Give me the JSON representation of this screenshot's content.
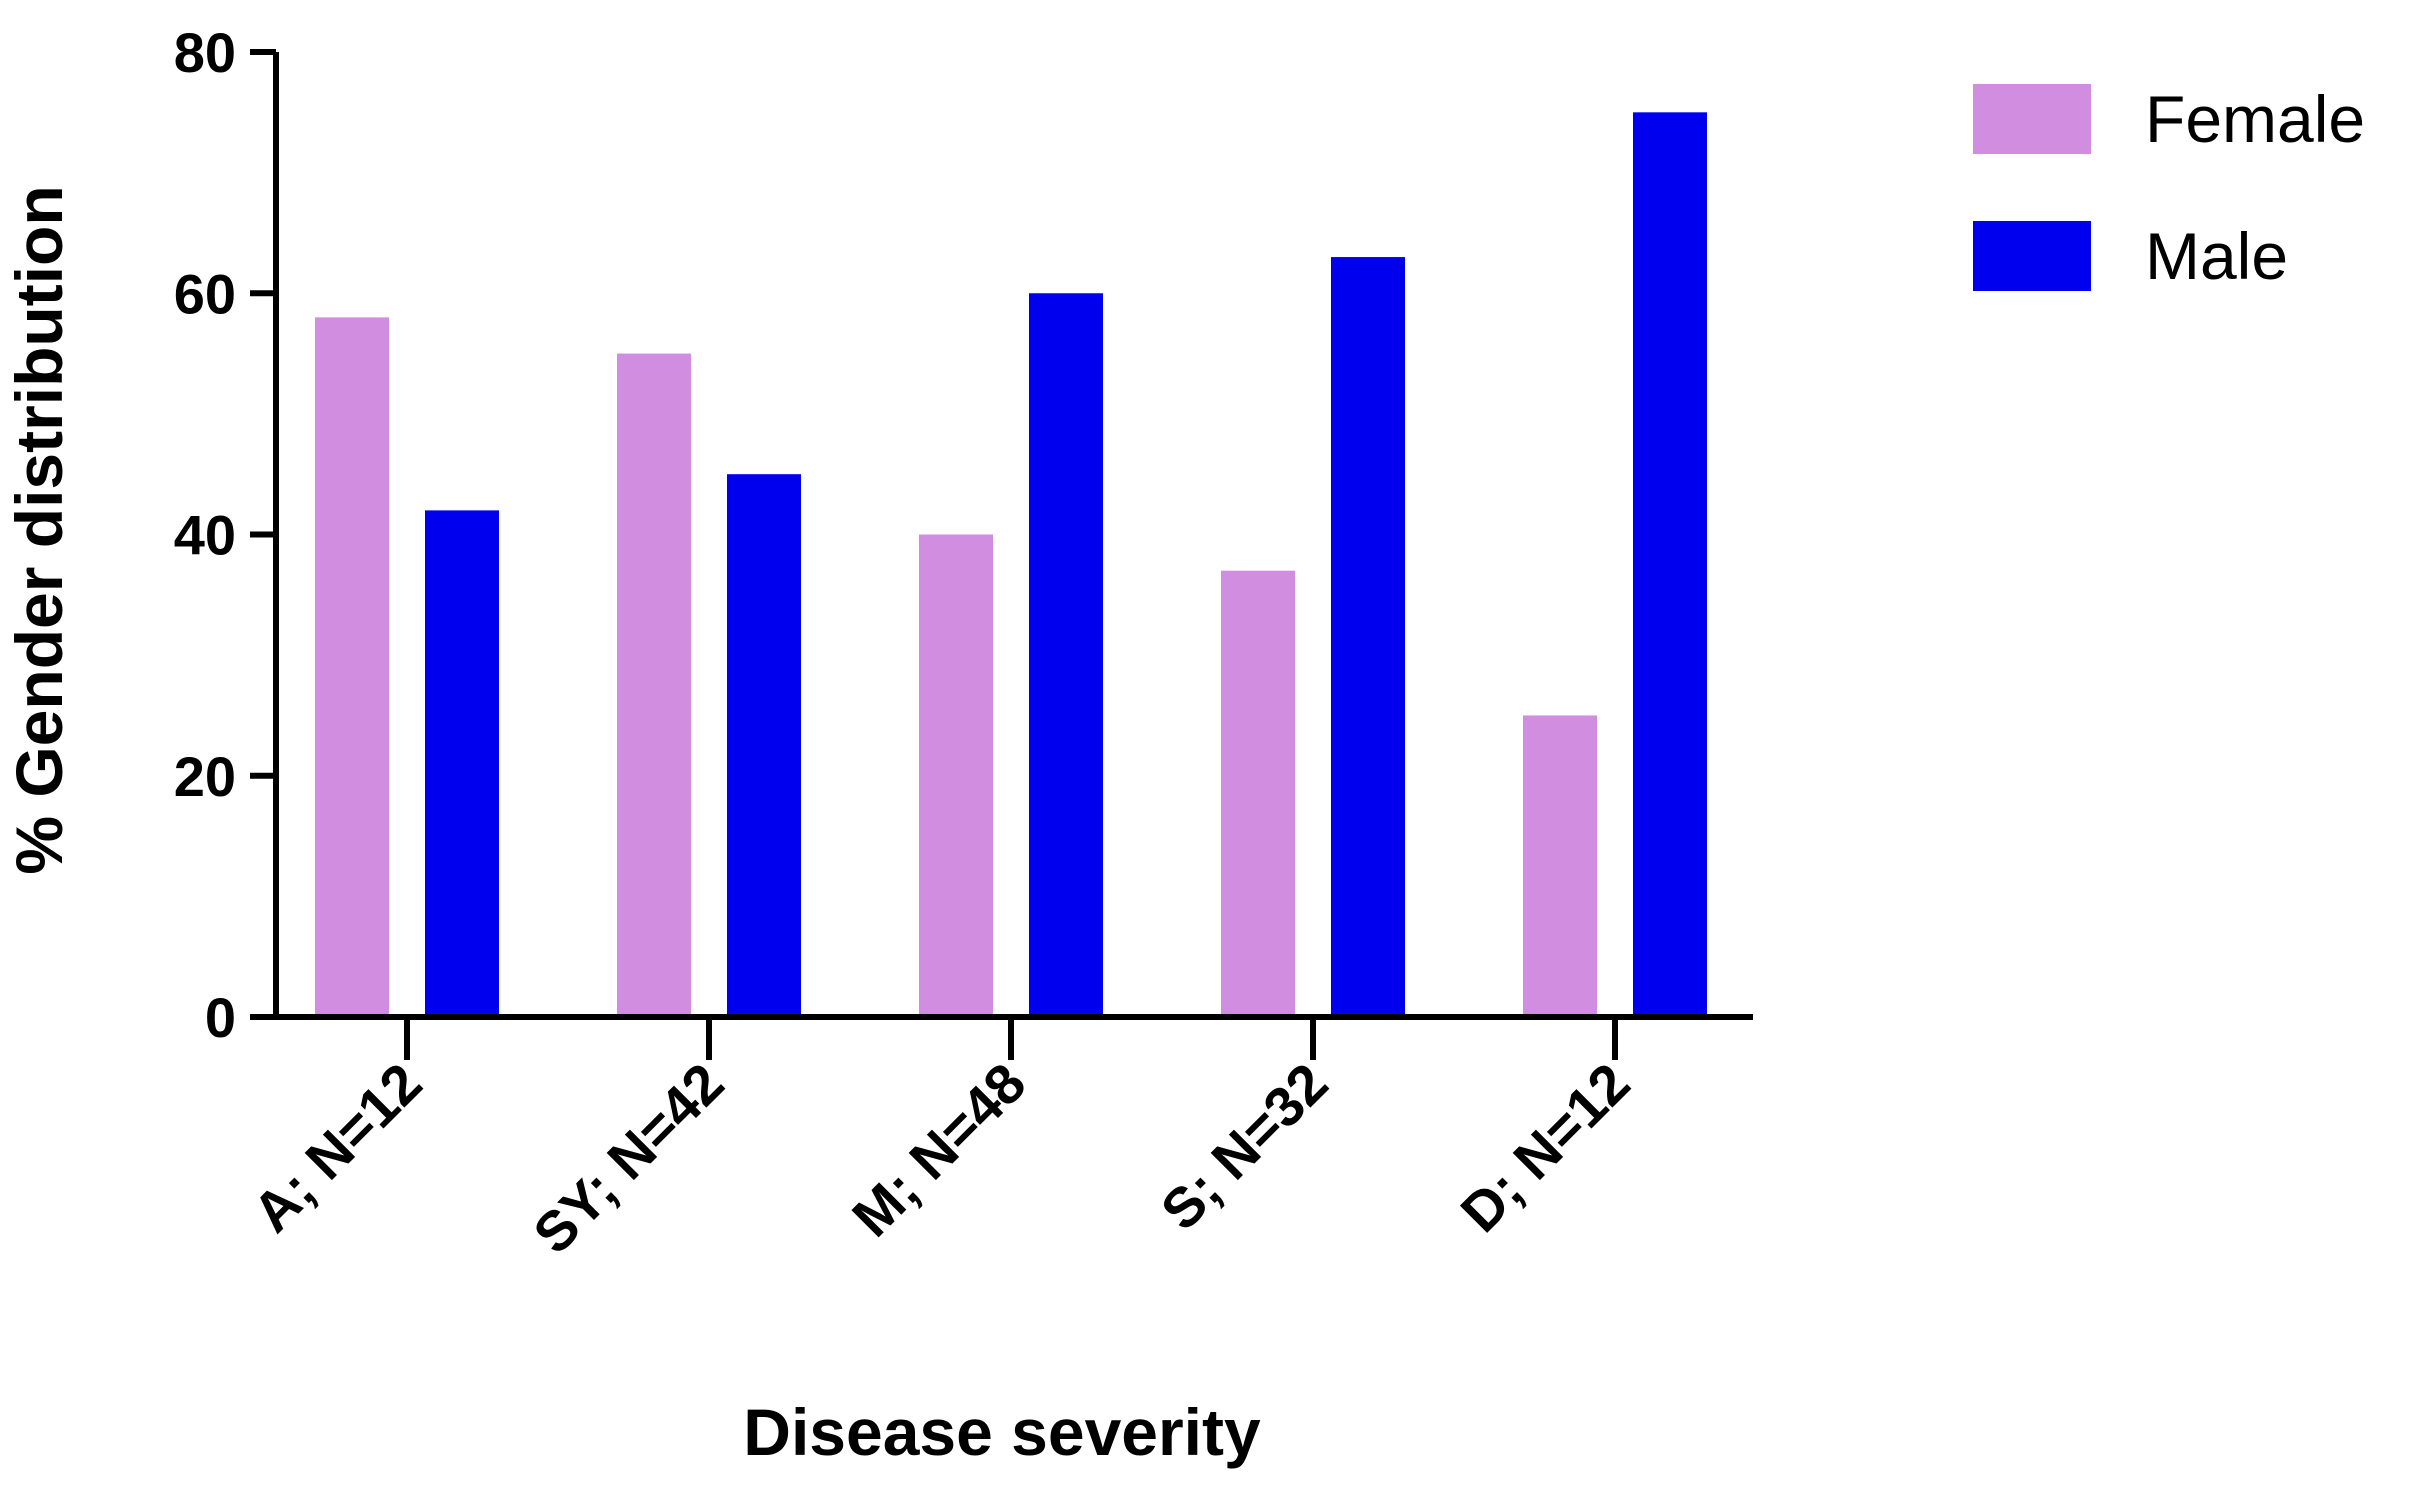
{
  "chart_data": {
    "type": "bar",
    "title": "",
    "xlabel": "Disease severity",
    "ylabel": "% Gender distribution",
    "categories": [
      "A; N=12",
      "SY; N=42",
      "M; N=48",
      "S; N=32",
      "D; N=12"
    ],
    "series": [
      {
        "name": "Female",
        "color": "#d18ddf",
        "values": [
          58,
          55,
          40,
          37,
          25
        ]
      },
      {
        "name": "Male",
        "color": "#0000ee",
        "values": [
          42,
          45,
          60,
          63,
          75
        ]
      }
    ],
    "ylim": [
      0,
      80
    ],
    "yticks": [
      "0",
      "20",
      "40",
      "60",
      "80"
    ],
    "grid": false,
    "legend": "right"
  }
}
